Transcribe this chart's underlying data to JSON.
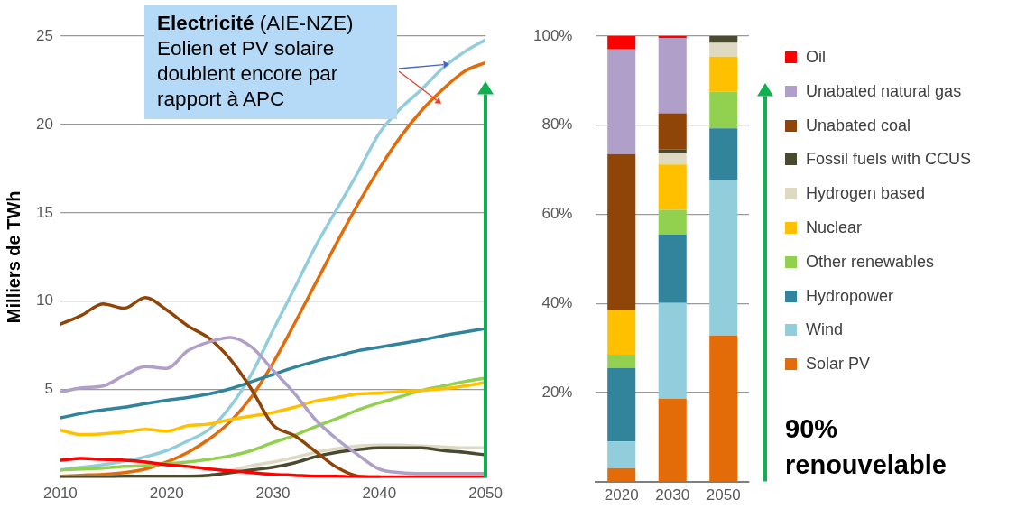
{
  "chart_data": [
    {
      "type": "line",
      "ylabel": "Milliers de TWh",
      "annotations": [
        "Electricité",
        "(AIE-NZE) Eolien et PV solaire doublent encore par rapport à APC"
      ],
      "x": [
        2010,
        2012,
        2014,
        2016,
        2018,
        2020,
        2022,
        2024,
        2026,
        2028,
        2030,
        2032,
        2034,
        2036,
        2038,
        2040,
        2042,
        2044,
        2046,
        2048,
        2050
      ],
      "xlim": [
        2010,
        2050
      ],
      "xticks": [
        2010,
        2020,
        2030,
        2040,
        2050
      ],
      "ylim": [
        0,
        25
      ],
      "yticks": [
        5,
        10,
        15,
        20,
        25
      ],
      "grid": "y",
      "legend": false,
      "marker": "none",
      "series": [
        {
          "color": "#ff0000",
          "values": [
            1.0,
            1.1,
            1.05,
            1.0,
            0.9,
            0.75,
            0.65,
            0.5,
            0.4,
            0.3,
            0.2,
            0.15,
            0.1,
            0.1,
            0.05,
            0.05,
            0.05,
            0.05,
            0.05,
            0.05,
            0.05
          ]
        },
        {
          "color": "#b09fc8",
          "values": [
            4.85,
            5.1,
            5.2,
            5.8,
            6.3,
            6.2,
            7.2,
            7.7,
            7.95,
            7.4,
            6.1,
            4.8,
            3.3,
            2.2,
            1.3,
            0.5,
            0.3,
            0.25,
            0.25,
            0.25,
            0.25
          ]
        },
        {
          "color": "#8f4408",
          "values": [
            8.7,
            9.2,
            9.85,
            9.6,
            10.2,
            9.5,
            8.6,
            7.9,
            6.7,
            5.0,
            3.0,
            2.4,
            1.5,
            0.6,
            0.1,
            0.05,
            null,
            null,
            null,
            null,
            null
          ]
        },
        {
          "color": "#4a4a30",
          "values": [
            0.05,
            0.05,
            0.05,
            0.1,
            0.1,
            0.1,
            0.1,
            0.15,
            0.3,
            0.45,
            0.6,
            0.85,
            1.2,
            1.45,
            1.6,
            1.7,
            1.7,
            1.7,
            1.55,
            1.45,
            1.3
          ]
        },
        {
          "color": "#ddd9c3",
          "values": [
            0.05,
            0.05,
            0.05,
            0.05,
            0.05,
            0.05,
            0.05,
            0.1,
            0.4,
            0.7,
            0.9,
            1.15,
            1.45,
            1.65,
            1.8,
            1.85,
            1.85,
            1.8,
            1.75,
            1.7,
            1.7
          ]
        },
        {
          "color": "#ffc000",
          "values": [
            2.7,
            2.45,
            2.5,
            2.6,
            2.75,
            2.65,
            2.95,
            3.05,
            3.3,
            3.5,
            3.7,
            4.0,
            4.35,
            4.55,
            4.75,
            4.8,
            4.9,
            4.95,
            5.05,
            5.2,
            5.4
          ]
        },
        {
          "color": "#92d050",
          "values": [
            0.45,
            0.5,
            0.55,
            0.65,
            0.7,
            0.8,
            0.9,
            1.05,
            1.25,
            1.55,
            2.0,
            2.4,
            2.9,
            3.35,
            3.85,
            4.25,
            4.6,
            4.95,
            5.2,
            5.45,
            5.65
          ]
        },
        {
          "color": "#31849b",
          "values": [
            3.4,
            3.65,
            3.85,
            4.0,
            4.2,
            4.4,
            4.55,
            4.75,
            5.05,
            5.45,
            5.85,
            6.25,
            6.6,
            6.9,
            7.2,
            7.4,
            7.6,
            7.8,
            8.05,
            8.25,
            8.45
          ]
        },
        {
          "color": "#92cddc",
          "values": [
            0.45,
            0.6,
            0.75,
            0.95,
            1.2,
            1.55,
            2.1,
            2.75,
            4.05,
            5.9,
            8.35,
            10.7,
            13.1,
            15.2,
            17.3,
            19.5,
            20.9,
            22.0,
            23.2,
            24.1,
            24.8
          ]
        },
        {
          "color": "#e36c09",
          "values": [
            0.1,
            0.15,
            0.2,
            0.3,
            0.5,
            0.9,
            1.45,
            2.2,
            3.2,
            4.6,
            6.5,
            8.7,
            11.0,
            13.3,
            15.5,
            17.5,
            19.3,
            20.8,
            22.0,
            23.0,
            23.5
          ]
        }
      ]
    },
    {
      "type": "bar",
      "stacked": true,
      "categories": [
        "2020",
        "2030",
        "2050"
      ],
      "annotations": [
        "90% renouvelable"
      ],
      "ylim": [
        0,
        100
      ],
      "yticks": [
        {
          "value": 0,
          "label": null
        },
        {
          "value": 20,
          "label": "20%"
        },
        {
          "value": 40,
          "label": "40%"
        },
        {
          "value": 60,
          "label": "60%"
        },
        {
          "value": 80,
          "label": "80%"
        },
        {
          "value": 100,
          "label": "100%"
        }
      ],
      "grid": "y",
      "legend": "right",
      "series": [
        {
          "name": "Solar PV",
          "color": "#e36c09",
          "values": [
            3,
            18.6,
            32.8
          ]
        },
        {
          "name": "Wind",
          "color": "#92cddc",
          "values": [
            6,
            21.5,
            35
          ]
        },
        {
          "name": "Hydropower",
          "color": "#31849b",
          "values": [
            16.5,
            15.4,
            11.5
          ]
        },
        {
          "name": "Other renewables",
          "color": "#92d050",
          "values": [
            3,
            5.5,
            8.2
          ]
        },
        {
          "name": "Nuclear",
          "color": "#ffc000",
          "values": [
            10,
            10.2,
            7.9
          ]
        },
        {
          "name": "Hydrogen based",
          "color": "#ddd9c3",
          "values": [
            0,
            2.5,
            3.1
          ]
        },
        {
          "name": "Fossil fuels with CCUS",
          "color": "#4a4a30",
          "values": [
            0,
            0.8,
            1.5
          ]
        },
        {
          "name": "Unabated coal",
          "color": "#8f4408",
          "values": [
            35,
            8.2,
            0
          ]
        },
        {
          "name": "Unabated natural gas",
          "color": "#b09fc8",
          "values": [
            23.5,
            16.9,
            0
          ]
        },
        {
          "name": "Oil",
          "color": "#ff0000",
          "values": [
            3,
            0.4,
            0
          ]
        }
      ]
    }
  ]
}
